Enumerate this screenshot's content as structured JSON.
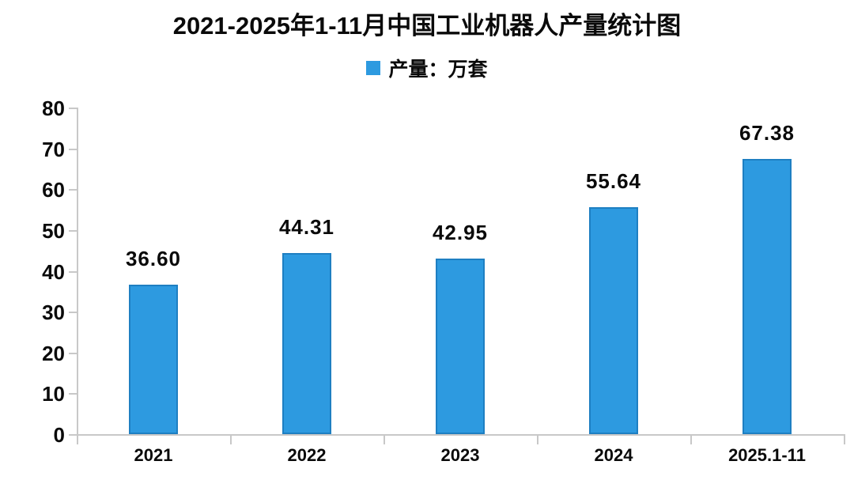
{
  "title": "2021-2025年1-11月中国工业机器人产量统计图",
  "legend": {
    "label": "产量：万套",
    "swatch_color": "#2D9AE0",
    "swatch_icon": "blue-square"
  },
  "colors": {
    "bar_fill": "#2D9AE0",
    "bar_border": "#1E7FC2",
    "axis": "#c8c8c8",
    "text": "#0a0a0a",
    "background": "#ffffff"
  },
  "chart_data": {
    "type": "bar",
    "title": "2021-2025年1-11月中国工业机器人产量统计图",
    "categories": [
      "2021",
      "2022",
      "2023",
      "2024",
      "2025.1-11"
    ],
    "values": [
      36.6,
      44.31,
      42.95,
      55.64,
      67.38
    ],
    "value_labels": [
      "36.60",
      "44.31",
      "42.95",
      "55.64",
      "67.38"
    ],
    "series_name": "产量：万套",
    "xlabel": "",
    "ylabel": "",
    "ylim": [
      0,
      80
    ],
    "yticks": [
      0,
      10,
      20,
      30,
      40,
      50,
      60,
      70,
      80
    ],
    "grid": false,
    "legend_position": "top-center"
  }
}
